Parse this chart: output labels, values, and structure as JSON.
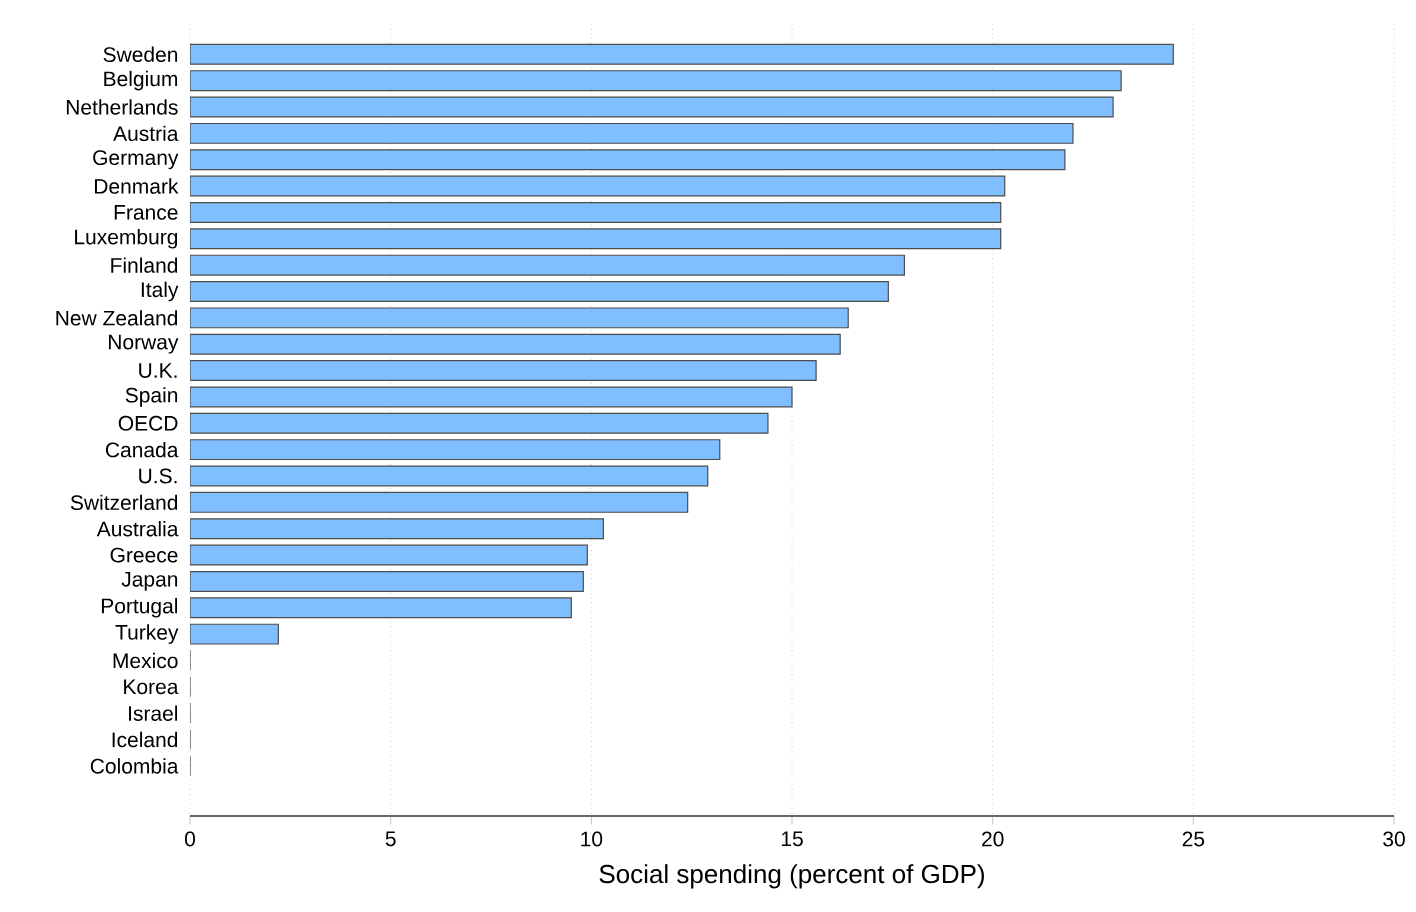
{
  "chart_data": {
    "type": "bar",
    "orientation": "horizontal",
    "categories": [
      "Sweden",
      "Belgium",
      "Netherlands",
      "Austria",
      "Germany",
      "Denmark",
      "France",
      "Luxemburg",
      "Finland",
      "Italy",
      "New Zealand",
      "Norway",
      "U.K.",
      "Spain",
      "OECD",
      "Canada",
      "U.S.",
      "Switzerland",
      "Australia",
      "Greece",
      "Japan",
      "Portugal",
      "Turkey",
      "Mexico",
      "Korea",
      "Israel",
      "Iceland",
      "Colombia"
    ],
    "values": [
      24.5,
      23.2,
      23.0,
      22.0,
      21.8,
      20.3,
      20.2,
      20.2,
      17.8,
      17.4,
      16.4,
      16.2,
      15.6,
      15.0,
      14.4,
      13.2,
      12.9,
      12.4,
      10.3,
      9.9,
      9.8,
      9.5,
      2.2,
      0,
      0,
      0,
      0,
      0
    ],
    "color": "#80bfff",
    "xlabel": "Social spending (percent of GDP)",
    "xlim": [
      0,
      30
    ],
    "xticks": [
      0,
      5,
      10,
      15,
      20,
      25,
      30
    ],
    "grid": "x"
  }
}
